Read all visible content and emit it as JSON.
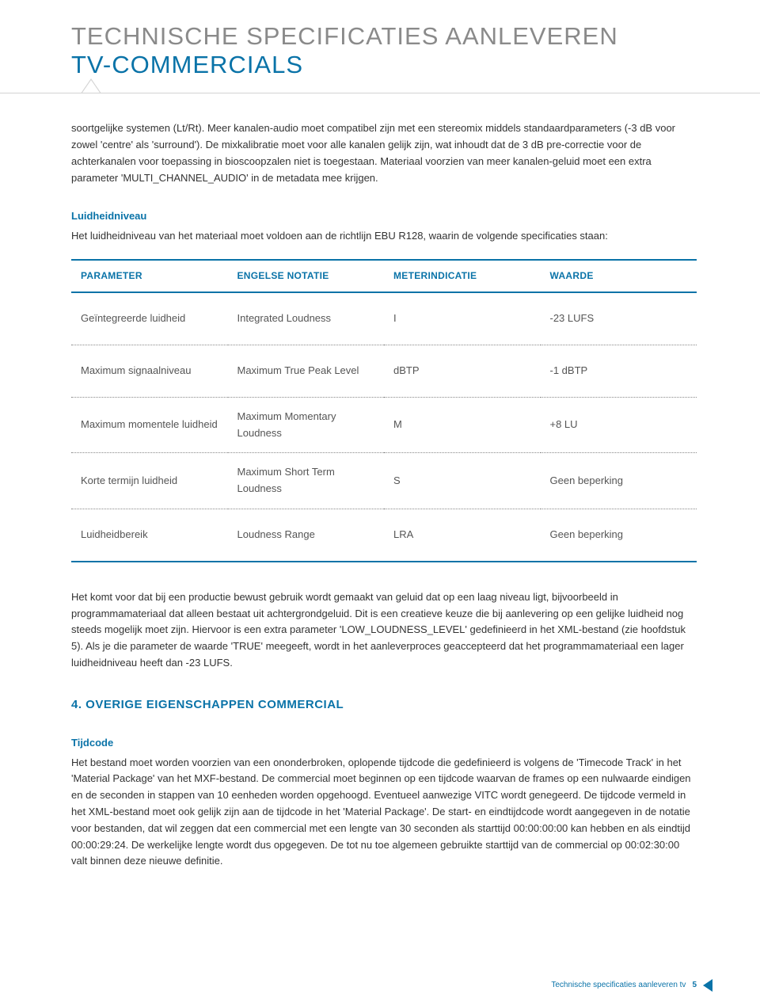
{
  "header": {
    "line1": "TECHNISCHE SPECIFICATIES AANLEVEREN",
    "line2": "TV-COMMERCIALS"
  },
  "intro_paragraph": "soortgelijke systemen (Lt/Rt). Meer kanalen-audio moet compatibel zijn met een stereomix middels standaardparameters (-3 dB voor zowel 'centre' als 'surround'). De mixkalibratie moet voor alle kanalen gelijk zijn, wat inhoudt dat de 3 dB pre-correctie voor de achterkanalen voor toepassing in bioscoopzalen niet is toegestaan. Materiaal voorzien van meer kanalen-geluid moet een extra parameter 'MULTI_CHANNEL_AUDIO' in de metadata mee krijgen.",
  "loudness": {
    "label": "Luidheidniveau",
    "intro": "Het luidheidniveau van het materiaal moet voldoen aan de richtlijn EBU R128, waarin de volgende specificaties staan:"
  },
  "table": {
    "headers": [
      "PARAMETER",
      "ENGELSE NOTATIE",
      "METERINDICATIE",
      "WAARDE"
    ],
    "rows": [
      {
        "cells": [
          "Geïntegreerde luidheid",
          "Integrated Loudness",
          "I",
          "-23 LUFS"
        ],
        "class": "dotted"
      },
      {
        "cells": [
          "Maximum signaalniveau",
          "Maximum True Peak Level",
          "dBTP",
          "-1 dBTP"
        ],
        "class": "dotted"
      },
      {
        "cells": [
          "Maximum momentele luidheid",
          "Maximum Momentary Loudness",
          "M",
          "+8 LU"
        ],
        "class": "dotted compact"
      },
      {
        "cells": [
          "Korte termijn luidheid",
          "Maximum Short Term Loudness",
          "S",
          "Geen beperking"
        ],
        "class": "dotted compact"
      },
      {
        "cells": [
          "Luidheidbereik",
          "Loudness Range",
          "LRA",
          "Geen beperking"
        ],
        "class": "last"
      }
    ]
  },
  "after_table_paragraph": "Het komt voor dat bij een productie bewust gebruik wordt gemaakt van geluid dat op een laag niveau ligt, bijvoorbeeld in programmamateriaal dat alleen bestaat uit achtergrondgeluid. Dit is een creatieve keuze die bij aanlevering op een gelijke luidheid nog steeds mogelijk moet zijn. Hiervoor is een extra parameter 'LOW_LOUDNESS_LEVEL' gedefinieerd in het XML-bestand (zie hoofdstuk 5). Als je die parameter de waarde 'TRUE' meegeeft, wordt in het aanleverproces geaccepteerd dat het programmamateriaal een lager luidheidniveau heeft dan -23 LUFS.",
  "section4": {
    "heading": "4. OVERIGE EIGENSCHAPPEN COMMERCIAL",
    "tijdcode_label": "Tijdcode",
    "tijdcode_body": "Het bestand moet worden voorzien van een ononderbroken, oplopende tijdcode die gedefinieerd is volgens de 'Timecode Track' in het 'Material Package' van het MXF-bestand. De commercial moet beginnen op een tijdcode waarvan de frames op een nulwaarde eindigen en de seconden in stappen van 10 eenheden worden opgehoogd. Eventueel aanwezige VITC wordt genegeerd. De tijdcode vermeld in het XML-bestand moet ook gelijk zijn aan de tijdcode in het 'Material Package'. De start- en eindtijdcode wordt aangegeven in de notatie voor bestanden, dat wil zeggen dat een commercial met een lengte van 30 seconden als starttijd 00:00:00:00 kan hebben en als eindtijd 00:00:29:24. De werkelijke lengte wordt dus opgegeven. De tot nu toe algemeen gebruikte starttijd van de commercial op 00:02:30:00 valt binnen deze nieuwe definitie."
  },
  "footer": {
    "text": "Technische specificaties aanleveren tv",
    "page": "5"
  },
  "colors": {
    "accent": "#0a73a8",
    "text": "#333333",
    "muted_heading": "#8a8a8a",
    "divider": "#d3d3d3"
  }
}
